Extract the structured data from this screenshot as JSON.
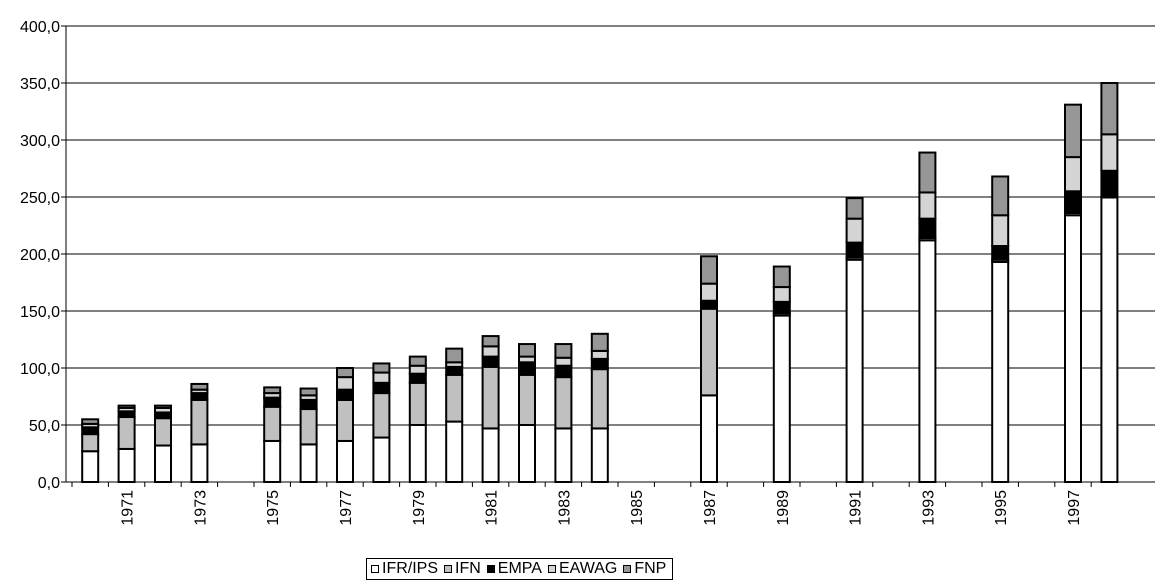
{
  "chart_data": {
    "type": "bar",
    "stacked": true,
    "title": "",
    "xlabel": "",
    "ylabel": "",
    "ylim": [
      0,
      400
    ],
    "y_ticks": [
      "0,0",
      "50,0",
      "100,0",
      "150,0",
      "200,0",
      "250,0",
      "300,0",
      "350,0",
      "400,0"
    ],
    "x_tick_labels": [
      "1971",
      "1973",
      "1975",
      "1977",
      "1979",
      "1981",
      "1983",
      "1985",
      "1987",
      "1989",
      "1991",
      "1993",
      "1995",
      "1997"
    ],
    "grid": "horizontal",
    "legend_position": "bottom",
    "years": [
      1970,
      1971,
      1972,
      1973,
      1974,
      1975,
      1976,
      1977,
      1978,
      1979,
      1980,
      1981,
      1982,
      1983,
      1984,
      1985,
      1986,
      1987,
      1988,
      1989,
      1990,
      1991,
      1992,
      1993,
      1994,
      1995,
      1996,
      1997,
      1998
    ],
    "series": [
      {
        "name": "IFR/IPS",
        "color": "#ffffff",
        "values": [
          27,
          29,
          32,
          33,
          null,
          36,
          33,
          36,
          39,
          50,
          53,
          47,
          50,
          47,
          47,
          null,
          null,
          76,
          null,
          146,
          null,
          195,
          null,
          212,
          null,
          193,
          null,
          234,
          250
        ]
      },
      {
        "name": "IFN",
        "color": "#c0c0c0",
        "values": [
          15,
          28,
          24,
          39,
          null,
          30,
          31,
          36,
          39,
          37,
          41,
          54,
          44,
          45,
          52,
          null,
          null,
          76,
          null,
          2,
          null,
          2,
          null,
          2,
          null,
          2,
          null,
          2,
          0
        ]
      },
      {
        "name": "EMPA",
        "color": "#000000",
        "values": [
          6,
          5,
          5,
          6,
          null,
          8,
          8,
          9,
          9,
          8,
          7,
          9,
          11,
          10,
          9,
          null,
          null,
          7,
          null,
          10,
          null,
          13,
          null,
          17,
          null,
          12,
          null,
          19,
          23
        ]
      },
      {
        "name": "EAWAG",
        "color": "#d4d4d4",
        "values": [
          3,
          3,
          4,
          3,
          null,
          4,
          4,
          11,
          9,
          7,
          4,
          9,
          5,
          7,
          7,
          null,
          null,
          15,
          null,
          13,
          null,
          21,
          null,
          23,
          null,
          27,
          null,
          30,
          32
        ]
      },
      {
        "name": "FNP",
        "color": "#969696",
        "values": [
          4,
          2,
          2,
          5,
          null,
          5,
          6,
          8,
          8,
          8,
          12,
          9,
          11,
          12,
          15,
          null,
          null,
          24,
          null,
          18,
          null,
          18,
          null,
          35,
          null,
          34,
          null,
          46,
          45
        ]
      }
    ]
  }
}
